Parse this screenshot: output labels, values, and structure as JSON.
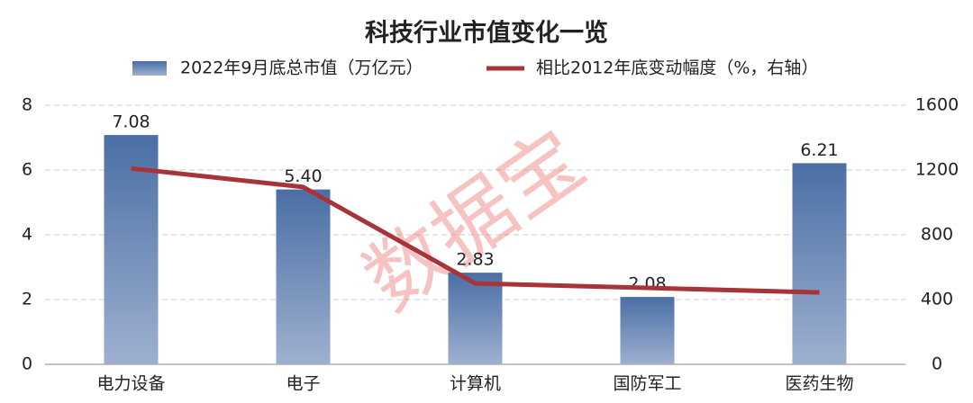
{
  "chart_data": {
    "type": "bar",
    "title": "科技行业市值变化一览",
    "watermark": "数据宝",
    "categories": [
      "电力设备",
      "电子",
      "计算机",
      "国防军工",
      "医药生物"
    ],
    "series": [
      {
        "name": "2022年9月底总市值（万亿元）",
        "type": "bar",
        "color": "#4a6fa5",
        "values": [
          7.08,
          5.4,
          2.83,
          2.08,
          6.21
        ],
        "value_labels": [
          "7.08",
          "5.40",
          "2.83",
          "2.08",
          "6.21"
        ]
      },
      {
        "name": "相比2012年底变动幅度（%，右轴）",
        "type": "line",
        "axis": "y2",
        "color": "#a8343a",
        "values": [
          1210,
          1095,
          500,
          472,
          444
        ]
      }
    ],
    "ylim": [
      0,
      8
    ],
    "yticks": [
      0,
      2,
      4,
      6,
      8
    ],
    "y2lim": [
      0,
      1600
    ],
    "y2ticks": [
      0,
      400,
      800,
      1200,
      1600
    ],
    "grid": true
  }
}
